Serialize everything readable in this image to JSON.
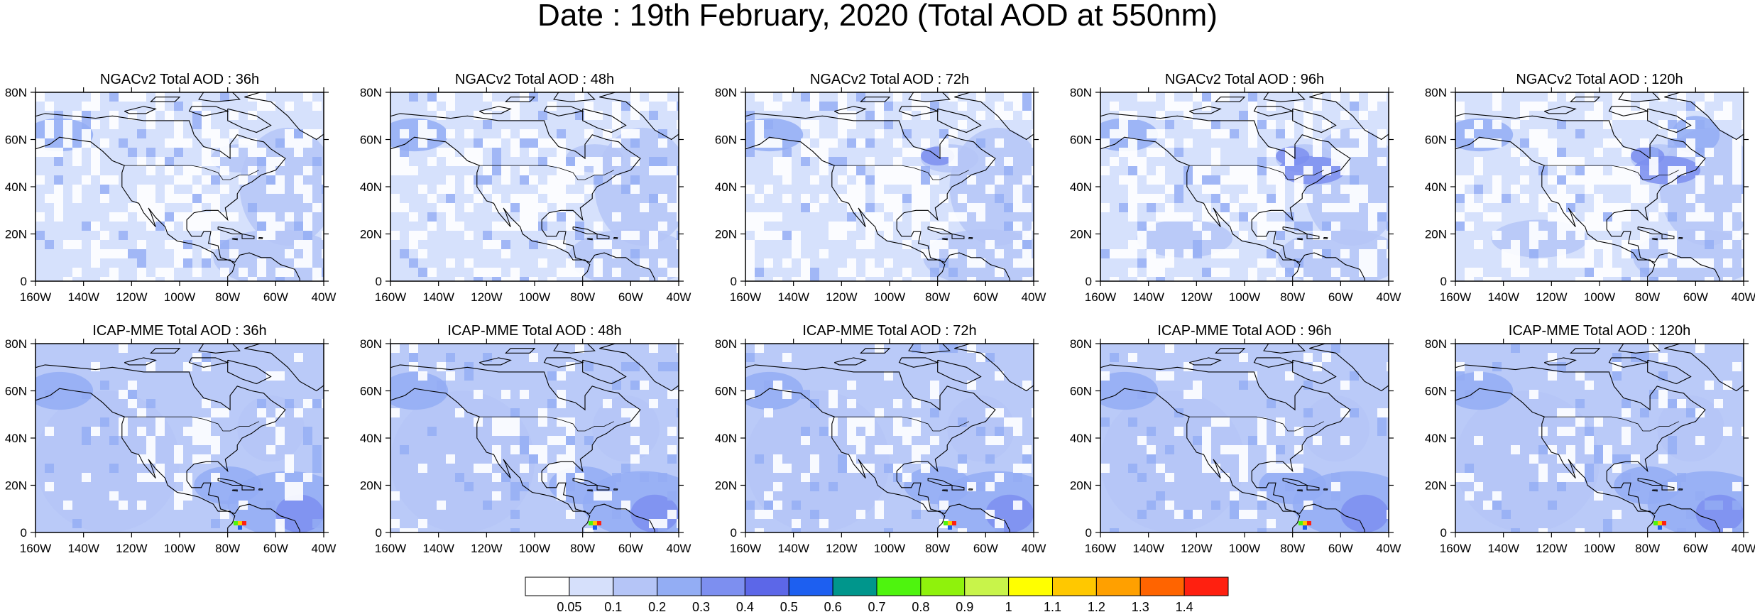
{
  "title": "Date : 19th February, 2020 (Total AOD at 550nm)",
  "panels": [
    {
      "title": "NGACv2 Total AOD : 36h"
    },
    {
      "title": "NGACv2 Total AOD : 48h"
    },
    {
      "title": "NGACv2 Total AOD : 72h"
    },
    {
      "title": "NGACv2 Total AOD : 96h"
    },
    {
      "title": "NGACv2 Total AOD : 120h"
    },
    {
      "title": "ICAP-MME Total AOD : 36h"
    },
    {
      "title": "ICAP-MME Total AOD : 48h"
    },
    {
      "title": "ICAP-MME Total AOD : 72h"
    },
    {
      "title": "ICAP-MME Total AOD : 96h"
    },
    {
      "title": "ICAP-MME Total AOD : 120h"
    }
  ],
  "axes": {
    "x_ticks": [
      "160W",
      "140W",
      "120W",
      "100W",
      "80W",
      "60W",
      "40W"
    ],
    "y_ticks": [
      "0",
      "20N",
      "40N",
      "60N",
      "80N"
    ]
  },
  "colorbar": {
    "labels": [
      "0.05",
      "0.1",
      "0.2",
      "0.3",
      "0.4",
      "0.5",
      "0.6",
      "0.7",
      "0.8",
      "0.9",
      "1",
      "1.1",
      "1.2",
      "1.3",
      "1.4"
    ],
    "colors": [
      "#ffffff",
      "#d6e0fb",
      "#b5c5f7",
      "#93adf4",
      "#7d8ff0",
      "#5c67e8",
      "#1d5ff0",
      "#00968c",
      "#4ef40e",
      "#8ff20c",
      "#c8f44a",
      "#ffff00",
      "#ffc800",
      "#ffa000",
      "#ff6400",
      "#ff2010"
    ]
  }
}
